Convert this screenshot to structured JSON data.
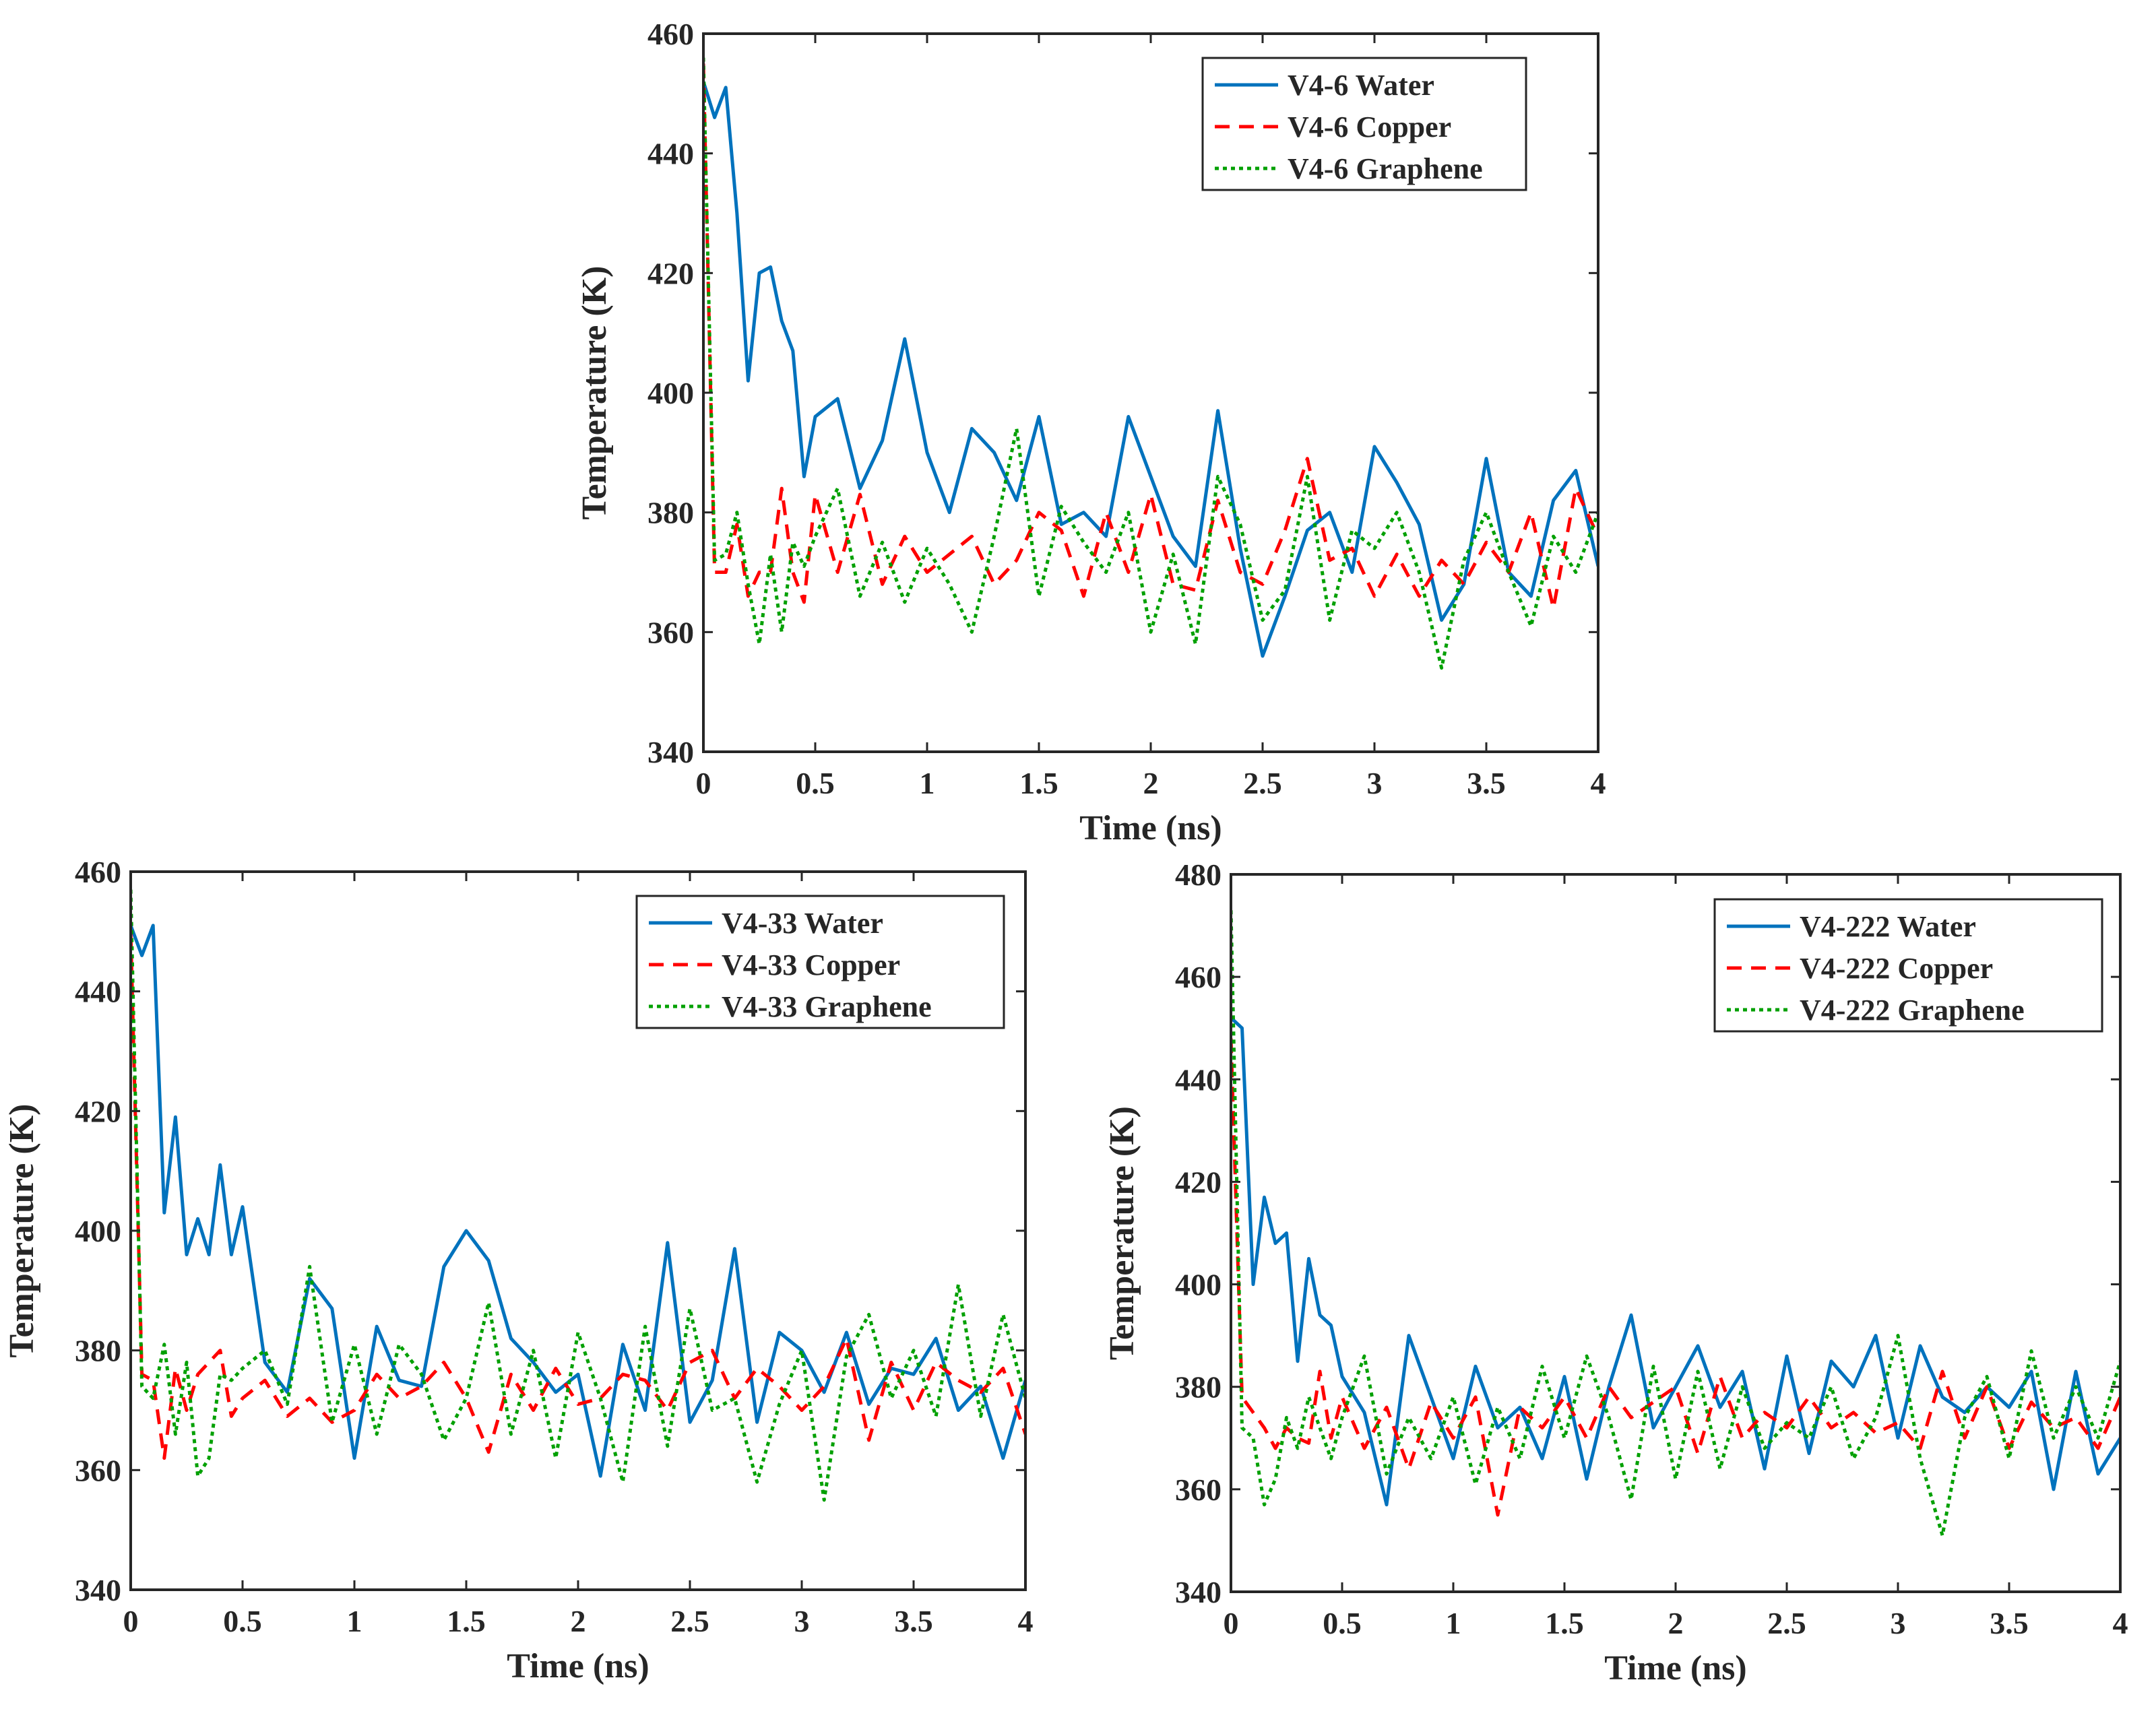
{
  "chart_data": [
    {
      "type": "line",
      "panel": "top",
      "xlabel": "Time (ns)",
      "ylabel": "Temperature (K)",
      "xlim": [
        0,
        4
      ],
      "ylim": [
        340,
        460
      ],
      "xticks": [
        "0",
        "0.5",
        "1",
        "1.5",
        "2",
        "2.5",
        "3",
        "3.5",
        "4"
      ],
      "yticks": [
        "340",
        "360",
        "380",
        "400",
        "420",
        "440",
        "460"
      ],
      "legend_position": "top-right",
      "series": [
        {
          "name": "V4-6 Water",
          "color": "#0072BD",
          "style": "solid",
          "x": [
            0,
            0.05,
            0.1,
            0.15,
            0.2,
            0.25,
            0.3,
            0.35,
            0.4,
            0.45,
            0.5,
            0.6,
            0.7,
            0.8,
            0.9,
            1.0,
            1.1,
            1.2,
            1.3,
            1.4,
            1.5,
            1.6,
            1.7,
            1.8,
            1.9,
            2.0,
            2.1,
            2.2,
            2.3,
            2.4,
            2.5,
            2.6,
            2.7,
            2.8,
            2.9,
            3.0,
            3.1,
            3.2,
            3.3,
            3.4,
            3.5,
            3.6,
            3.7,
            3.8,
            3.9,
            4.0
          ],
          "values": [
            452,
            446,
            451,
            430,
            402,
            420,
            421,
            412,
            407,
            386,
            396,
            399,
            384,
            392,
            409,
            390,
            380,
            394,
            390,
            382,
            396,
            378,
            380,
            376,
            396,
            386,
            376,
            371,
            397,
            374,
            356,
            366,
            377,
            380,
            370,
            391,
            385,
            378,
            362,
            368,
            389,
            370,
            366,
            382,
            387,
            371
          ]
        },
        {
          "name": "V4-6 Copper",
          "color": "#FF0000",
          "style": "dashed",
          "x": [
            0,
            0.05,
            0.1,
            0.15,
            0.2,
            0.25,
            0.3,
            0.35,
            0.4,
            0.45,
            0.5,
            0.6,
            0.7,
            0.8,
            0.9,
            1.0,
            1.1,
            1.2,
            1.3,
            1.4,
            1.5,
            1.6,
            1.7,
            1.8,
            1.9,
            2.0,
            2.1,
            2.2,
            2.3,
            2.4,
            2.5,
            2.6,
            2.7,
            2.8,
            2.9,
            3.0,
            3.1,
            3.2,
            3.3,
            3.4,
            3.5,
            3.6,
            3.7,
            3.8,
            3.9,
            4.0
          ],
          "values": [
            455,
            370,
            370,
            378,
            366,
            370,
            370,
            384,
            370,
            365,
            383,
            370,
            383,
            368,
            376,
            370,
            373,
            376,
            368,
            372,
            380,
            377,
            366,
            380,
            370,
            383,
            368,
            367,
            382,
            370,
            368,
            377,
            389,
            372,
            374,
            366,
            373,
            366,
            372,
            368,
            375,
            370,
            380,
            364,
            384,
            376
          ]
        },
        {
          "name": "V4-6 Graphene",
          "color": "#00A000",
          "style": "dotted",
          "x": [
            0,
            0.05,
            0.1,
            0.15,
            0.2,
            0.25,
            0.3,
            0.35,
            0.4,
            0.45,
            0.5,
            0.6,
            0.7,
            0.8,
            0.9,
            1.0,
            1.1,
            1.2,
            1.3,
            1.4,
            1.5,
            1.6,
            1.7,
            1.8,
            1.9,
            2.0,
            2.1,
            2.2,
            2.3,
            2.4,
            2.5,
            2.6,
            2.7,
            2.8,
            2.9,
            3.0,
            3.1,
            3.2,
            3.3,
            3.4,
            3.5,
            3.6,
            3.7,
            3.8,
            3.9,
            4.0
          ],
          "values": [
            456,
            372,
            373,
            380,
            368,
            358,
            373,
            360,
            375,
            371,
            376,
            384,
            366,
            375,
            365,
            374,
            368,
            360,
            376,
            394,
            366,
            381,
            375,
            370,
            380,
            360,
            373,
            358,
            386,
            378,
            362,
            367,
            386,
            362,
            377,
            374,
            380,
            370,
            354,
            372,
            380,
            370,
            361,
            376,
            370,
            380
          ]
        }
      ]
    },
    {
      "type": "line",
      "panel": "bottom-left",
      "xlabel": "Time (ns)",
      "ylabel": "Temperature (K)",
      "xlim": [
        0,
        4
      ],
      "ylim": [
        340,
        460
      ],
      "xticks": [
        "0",
        "0.5",
        "1",
        "1.5",
        "2",
        "2.5",
        "3",
        "3.5",
        "4"
      ],
      "yticks": [
        "340",
        "360",
        "380",
        "400",
        "420",
        "440",
        "460"
      ],
      "legend_position": "top-right",
      "series": [
        {
          "name": "V4-33 Water",
          "color": "#0072BD",
          "style": "solid",
          "x": [
            0,
            0.05,
            0.1,
            0.15,
            0.2,
            0.25,
            0.3,
            0.35,
            0.4,
            0.45,
            0.5,
            0.6,
            0.7,
            0.8,
            0.9,
            1.0,
            1.1,
            1.2,
            1.3,
            1.4,
            1.5,
            1.6,
            1.7,
            1.8,
            1.9,
            2.0,
            2.1,
            2.2,
            2.3,
            2.4,
            2.5,
            2.6,
            2.7,
            2.8,
            2.9,
            3.0,
            3.1,
            3.2,
            3.3,
            3.4,
            3.5,
            3.6,
            3.7,
            3.8,
            3.9,
            4.0
          ],
          "values": [
            451,
            446,
            451,
            403,
            419,
            396,
            402,
            396,
            411,
            396,
            404,
            378,
            373,
            392,
            387,
            362,
            384,
            375,
            374,
            394,
            400,
            395,
            382,
            378,
            373,
            376,
            359,
            381,
            370,
            398,
            368,
            375,
            397,
            368,
            383,
            380,
            373,
            383,
            371,
            377,
            376,
            382,
            370,
            374,
            362,
            375
          ]
        },
        {
          "name": "V4-33 Copper",
          "color": "#FF0000",
          "style": "dashed",
          "x": [
            0,
            0.05,
            0.1,
            0.15,
            0.2,
            0.25,
            0.3,
            0.35,
            0.4,
            0.45,
            0.5,
            0.6,
            0.7,
            0.8,
            0.9,
            1.0,
            1.1,
            1.2,
            1.3,
            1.4,
            1.5,
            1.6,
            1.7,
            1.8,
            1.9,
            2.0,
            2.1,
            2.2,
            2.3,
            2.4,
            2.5,
            2.6,
            2.7,
            2.8,
            2.9,
            3.0,
            3.1,
            3.2,
            3.3,
            3.4,
            3.5,
            3.6,
            3.7,
            3.8,
            3.9,
            4.0
          ],
          "values": [
            450,
            376,
            375,
            362,
            377,
            370,
            376,
            378,
            380,
            369,
            372,
            375,
            369,
            372,
            368,
            370,
            376,
            372,
            374,
            378,
            372,
            363,
            376,
            370,
            377,
            371,
            372,
            376,
            375,
            370,
            378,
            380,
            372,
            377,
            374,
            370,
            374,
            382,
            365,
            378,
            370,
            378,
            375,
            373,
            377,
            366
          ]
        },
        {
          "name": "V4-33 Graphene",
          "color": "#00A000",
          "style": "dotted",
          "x": [
            0,
            0.05,
            0.1,
            0.15,
            0.2,
            0.25,
            0.3,
            0.35,
            0.4,
            0.45,
            0.5,
            0.6,
            0.7,
            0.8,
            0.9,
            1.0,
            1.1,
            1.2,
            1.3,
            1.4,
            1.5,
            1.6,
            1.7,
            1.8,
            1.9,
            2.0,
            2.1,
            2.2,
            2.3,
            2.4,
            2.5,
            2.6,
            2.7,
            2.8,
            2.9,
            3.0,
            3.1,
            3.2,
            3.3,
            3.4,
            3.5,
            3.6,
            3.7,
            3.8,
            3.9,
            4.0
          ],
          "values": [
            457,
            374,
            372,
            381,
            366,
            378,
            359,
            362,
            376,
            375,
            377,
            380,
            371,
            394,
            368,
            381,
            366,
            381,
            376,
            365,
            372,
            388,
            366,
            380,
            362,
            383,
            372,
            358,
            384,
            364,
            387,
            370,
            372,
            358,
            371,
            380,
            355,
            379,
            386,
            372,
            380,
            369,
            391,
            369,
            386,
            372
          ]
        }
      ]
    },
    {
      "type": "line",
      "panel": "bottom-right",
      "xlabel": "Time (ns)",
      "ylabel": "Temperature (K)",
      "xlim": [
        0,
        4
      ],
      "ylim": [
        340,
        480
      ],
      "xticks": [
        "0",
        "0.5",
        "1",
        "1.5",
        "2",
        "2.5",
        "3",
        "3.5",
        "4"
      ],
      "yticks": [
        "340",
        "360",
        "380",
        "400",
        "420",
        "440",
        "460",
        "480"
      ],
      "legend_position": "top-right",
      "series": [
        {
          "name": "V4-222 Water",
          "color": "#0072BD",
          "style": "solid",
          "x": [
            0,
            0.05,
            0.1,
            0.15,
            0.2,
            0.25,
            0.3,
            0.35,
            0.4,
            0.45,
            0.5,
            0.6,
            0.7,
            0.8,
            0.9,
            1.0,
            1.1,
            1.2,
            1.3,
            1.4,
            1.5,
            1.6,
            1.7,
            1.8,
            1.9,
            2.0,
            2.1,
            2.2,
            2.3,
            2.4,
            2.5,
            2.6,
            2.7,
            2.8,
            2.9,
            3.0,
            3.1,
            3.2,
            3.3,
            3.4,
            3.5,
            3.6,
            3.7,
            3.8,
            3.9,
            4.0
          ],
          "values": [
            452,
            450,
            400,
            417,
            408,
            410,
            385,
            405,
            394,
            392,
            382,
            375,
            357,
            390,
            378,
            366,
            384,
            372,
            376,
            366,
            382,
            362,
            380,
            394,
            372,
            380,
            388,
            376,
            383,
            364,
            386,
            367,
            385,
            380,
            390,
            370,
            388,
            378,
            375,
            380,
            376,
            383,
            360,
            383,
            363,
            370
          ]
        },
        {
          "name": "V4-222 Copper",
          "color": "#FF0000",
          "style": "dashed",
          "x": [
            0,
            0.05,
            0.1,
            0.15,
            0.2,
            0.25,
            0.3,
            0.35,
            0.4,
            0.45,
            0.5,
            0.6,
            0.7,
            0.8,
            0.9,
            1.0,
            1.1,
            1.2,
            1.3,
            1.4,
            1.5,
            1.6,
            1.7,
            1.8,
            1.9,
            2.0,
            2.1,
            2.2,
            2.3,
            2.4,
            2.5,
            2.6,
            2.7,
            2.8,
            2.9,
            3.0,
            3.1,
            3.2,
            3.3,
            3.4,
            3.5,
            3.6,
            3.7,
            3.8,
            3.9,
            4.0
          ],
          "values": [
            448,
            378,
            375,
            372,
            368,
            372,
            370,
            369,
            383,
            370,
            378,
            368,
            376,
            364,
            377,
            370,
            378,
            355,
            376,
            372,
            378,
            370,
            380,
            374,
            377,
            380,
            367,
            382,
            370,
            375,
            372,
            378,
            372,
            375,
            371,
            373,
            368,
            383,
            370,
            380,
            368,
            377,
            372,
            374,
            368,
            378
          ]
        },
        {
          "name": "V4-222 Graphene",
          "color": "#00A000",
          "style": "dotted",
          "x": [
            0,
            0.05,
            0.1,
            0.15,
            0.2,
            0.25,
            0.3,
            0.35,
            0.4,
            0.45,
            0.5,
            0.6,
            0.7,
            0.8,
            0.9,
            1.0,
            1.1,
            1.2,
            1.3,
            1.4,
            1.5,
            1.6,
            1.7,
            1.8,
            1.9,
            2.0,
            2.1,
            2.2,
            2.3,
            2.4,
            2.5,
            2.6,
            2.7,
            2.8,
            2.9,
            3.0,
            3.1,
            3.2,
            3.3,
            3.4,
            3.5,
            3.6,
            3.7,
            3.8,
            3.9,
            4.0
          ],
          "values": [
            473,
            372,
            370,
            357,
            362,
            374,
            368,
            378,
            372,
            366,
            374,
            386,
            363,
            374,
            366,
            378,
            361,
            376,
            366,
            384,
            370,
            386,
            374,
            358,
            384,
            362,
            383,
            364,
            380,
            368,
            373,
            370,
            380,
            366,
            374,
            390,
            366,
            351,
            374,
            382,
            366,
            387,
            370,
            380,
            370,
            385
          ]
        }
      ]
    }
  ]
}
